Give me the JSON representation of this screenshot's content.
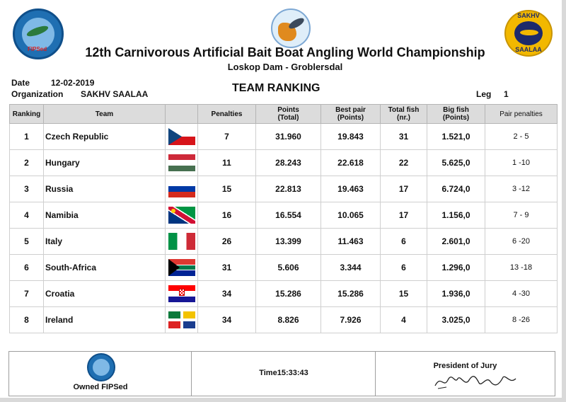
{
  "header": {
    "title": "12th Carnivorous Artificial Bait Boat Angling World Championship",
    "subtitle": "Loskop Dam - Groblersdal",
    "logo_left_text": "FIPSed",
    "logo_right_top": "SAKHV",
    "logo_right_bottom": "SAALAA"
  },
  "meta": {
    "date_label": "Date",
    "date_value": "12-02-2019",
    "org_label": "Organization",
    "org_value": "SAKHV SAALAA",
    "ranking_title": "TEAM RANKING",
    "leg_label": "Leg",
    "leg_value": "1"
  },
  "table": {
    "headers": {
      "ranking": "Ranking",
      "team": "Team",
      "flag": "",
      "penalties": "Penalties",
      "points_1": "Points",
      "points_2": "(Total)",
      "bestpair_1": "Best pair",
      "bestpair_2": "(Points)",
      "totalfish_1": "Total fish",
      "totalfish_2": "(nr.)",
      "bigfish_1": "Big fish",
      "bigfish_2": "(Points)",
      "pairpen": "Pair penalties"
    },
    "rows": [
      {
        "rank": "1",
        "team": "Czech Republic",
        "flag": "czech-flag",
        "penalties": "7",
        "points": "31.960",
        "best_pair": "19.843",
        "total_fish": "31",
        "big_fish": "1.521,0",
        "pair_penalties": "2 - 5"
      },
      {
        "rank": "2",
        "team": "Hungary",
        "flag": "hungary-flag",
        "penalties": "11",
        "points": "28.243",
        "best_pair": "22.618",
        "total_fish": "22",
        "big_fish": "5.625,0",
        "pair_penalties": "1 -10"
      },
      {
        "rank": "3",
        "team": "Russia",
        "flag": "russia-flag",
        "penalties": "15",
        "points": "22.813",
        "best_pair": "19.463",
        "total_fish": "17",
        "big_fish": "6.724,0",
        "pair_penalties": "3 -12"
      },
      {
        "rank": "4",
        "team": "Namibia",
        "flag": "namibia-flag",
        "penalties": "16",
        "points": "16.554",
        "best_pair": "10.065",
        "total_fish": "17",
        "big_fish": "1.156,0",
        "pair_penalties": "7 - 9"
      },
      {
        "rank": "5",
        "team": "Italy",
        "flag": "italy-flag",
        "penalties": "26",
        "points": "13.399",
        "best_pair": "11.463",
        "total_fish": "6",
        "big_fish": "2.601,0",
        "pair_penalties": "6 -20"
      },
      {
        "rank": "6",
        "team": "South-Africa",
        "flag": "south-africa-flag",
        "penalties": "31",
        "points": "5.606",
        "best_pair": "3.344",
        "total_fish": "6",
        "big_fish": "1.296,0",
        "pair_penalties": "13 -18"
      },
      {
        "rank": "7",
        "team": "Croatia",
        "flag": "croatia-flag",
        "penalties": "34",
        "points": "15.286",
        "best_pair": "15.286",
        "total_fish": "15",
        "big_fish": "1.936,0",
        "pair_penalties": "4 -30"
      },
      {
        "rank": "8",
        "team": "Ireland",
        "flag": "ireland-flag",
        "penalties": "34",
        "points": "8.826",
        "best_pair": "7.926",
        "total_fish": "4",
        "big_fish": "3.025,0",
        "pair_penalties": "8 -26"
      }
    ]
  },
  "footer": {
    "owned": "Owned FIPSed",
    "time": "Time15:33:43",
    "president": "President of Jury"
  }
}
